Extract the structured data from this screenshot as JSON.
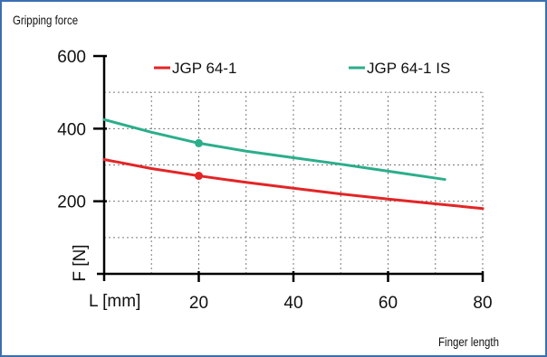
{
  "chart_data": {
    "type": "line",
    "title": "Gripping force",
    "xlabel": "Finger length",
    "x_axis_label": "L [mm]",
    "y_axis_label": "F [N]",
    "xlim": [
      0,
      80
    ],
    "ylim": [
      0,
      600
    ],
    "x_ticks": [
      "20",
      "40",
      "60",
      "80"
    ],
    "y_ticks": [
      "200",
      "400",
      "600"
    ],
    "grid": true,
    "legend_position": "top",
    "series": [
      {
        "name": "JGP 64-1",
        "color": "#e32526",
        "x": [
          0,
          10,
          20,
          30,
          40,
          50,
          60,
          70,
          80
        ],
        "y": [
          315,
          290,
          270,
          252,
          236,
          220,
          206,
          193,
          180
        ],
        "marker": {
          "x": 20,
          "y": 270
        }
      },
      {
        "name": "JGP 64-1 IS",
        "color": "#2bae8a",
        "x": [
          0,
          10,
          20,
          30,
          40,
          50,
          60,
          72
        ],
        "y": [
          425,
          390,
          360,
          338,
          320,
          302,
          283,
          260
        ],
        "marker": {
          "x": 20,
          "y": 360
        }
      }
    ]
  }
}
